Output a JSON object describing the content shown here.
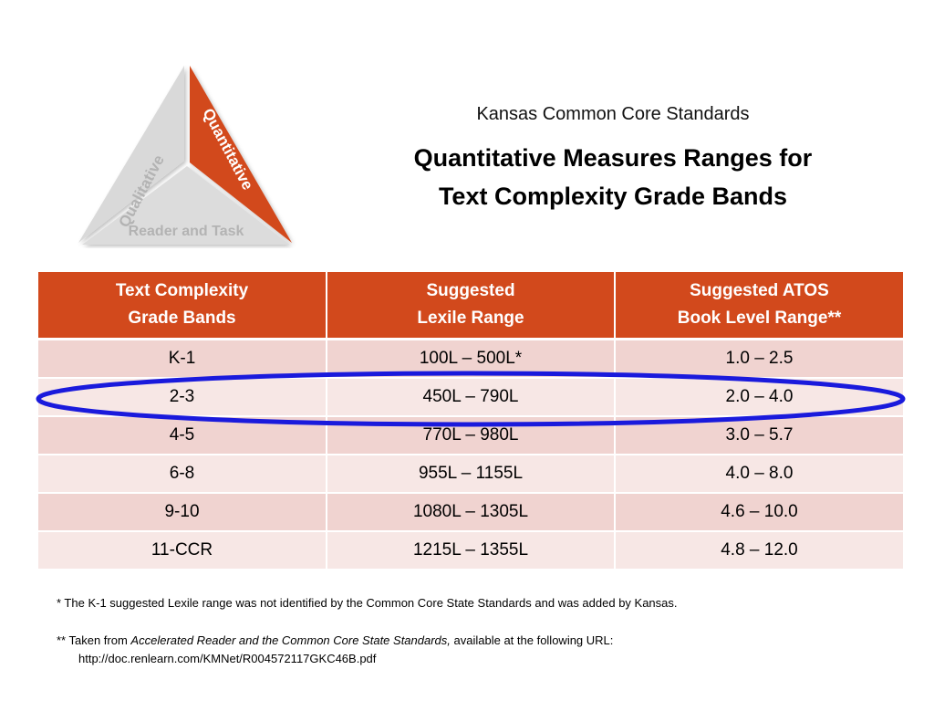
{
  "logo": {
    "segments": [
      "Qualitative",
      "Quantitative",
      "Reader and Task"
    ],
    "colors": {
      "accent": "#d2491c",
      "gray": "#d9d9d9",
      "gray_text": "#b3b3b3"
    }
  },
  "header": {
    "subtitle": "Kansas Common Core Standards",
    "title_line1": "Quantitative Measures Ranges for",
    "title_line2": "Text Complexity Grade Bands"
  },
  "table": {
    "headers": [
      {
        "line1": "Text Complexity",
        "line2": "Grade Bands"
      },
      {
        "line1": "Suggested",
        "line2": "Lexile Range"
      },
      {
        "line1": "Suggested ATOS",
        "line2": "Book Level Range**"
      }
    ],
    "rows": [
      {
        "band": "K-1",
        "lexile": "100L – 500L*",
        "atos": "1.0 – 2.5"
      },
      {
        "band": "2-3",
        "lexile": "450L – 790L",
        "atos": "2.0 – 4.0"
      },
      {
        "band": "4-5",
        "lexile": "770L – 980L",
        "atos": "3.0 – 5.7"
      },
      {
        "band": "6-8",
        "lexile": "955L – 1155L",
        "atos": "4.0 – 8.0"
      },
      {
        "band": "9-10",
        "lexile": "1080L – 1305L",
        "atos": "4.6 – 10.0"
      },
      {
        "band": "11-CCR",
        "lexile": "1215L – 1355L",
        "atos": "4.8 – 12.0"
      }
    ],
    "highlight_color": "#1a1adc"
  },
  "footnotes": {
    "note1": "* The K-1 suggested Lexile range was not identified by the Common Core State Standards and was added by Kansas.",
    "note2_prefix": "** Taken from ",
    "note2_italic": "Accelerated Reader and the Common Core State Standards,",
    "note2_suffix": " available at the following URL:",
    "note2_url": "http://doc.renlearn.com/KMNet/R004572117GKC46B.pdf"
  }
}
